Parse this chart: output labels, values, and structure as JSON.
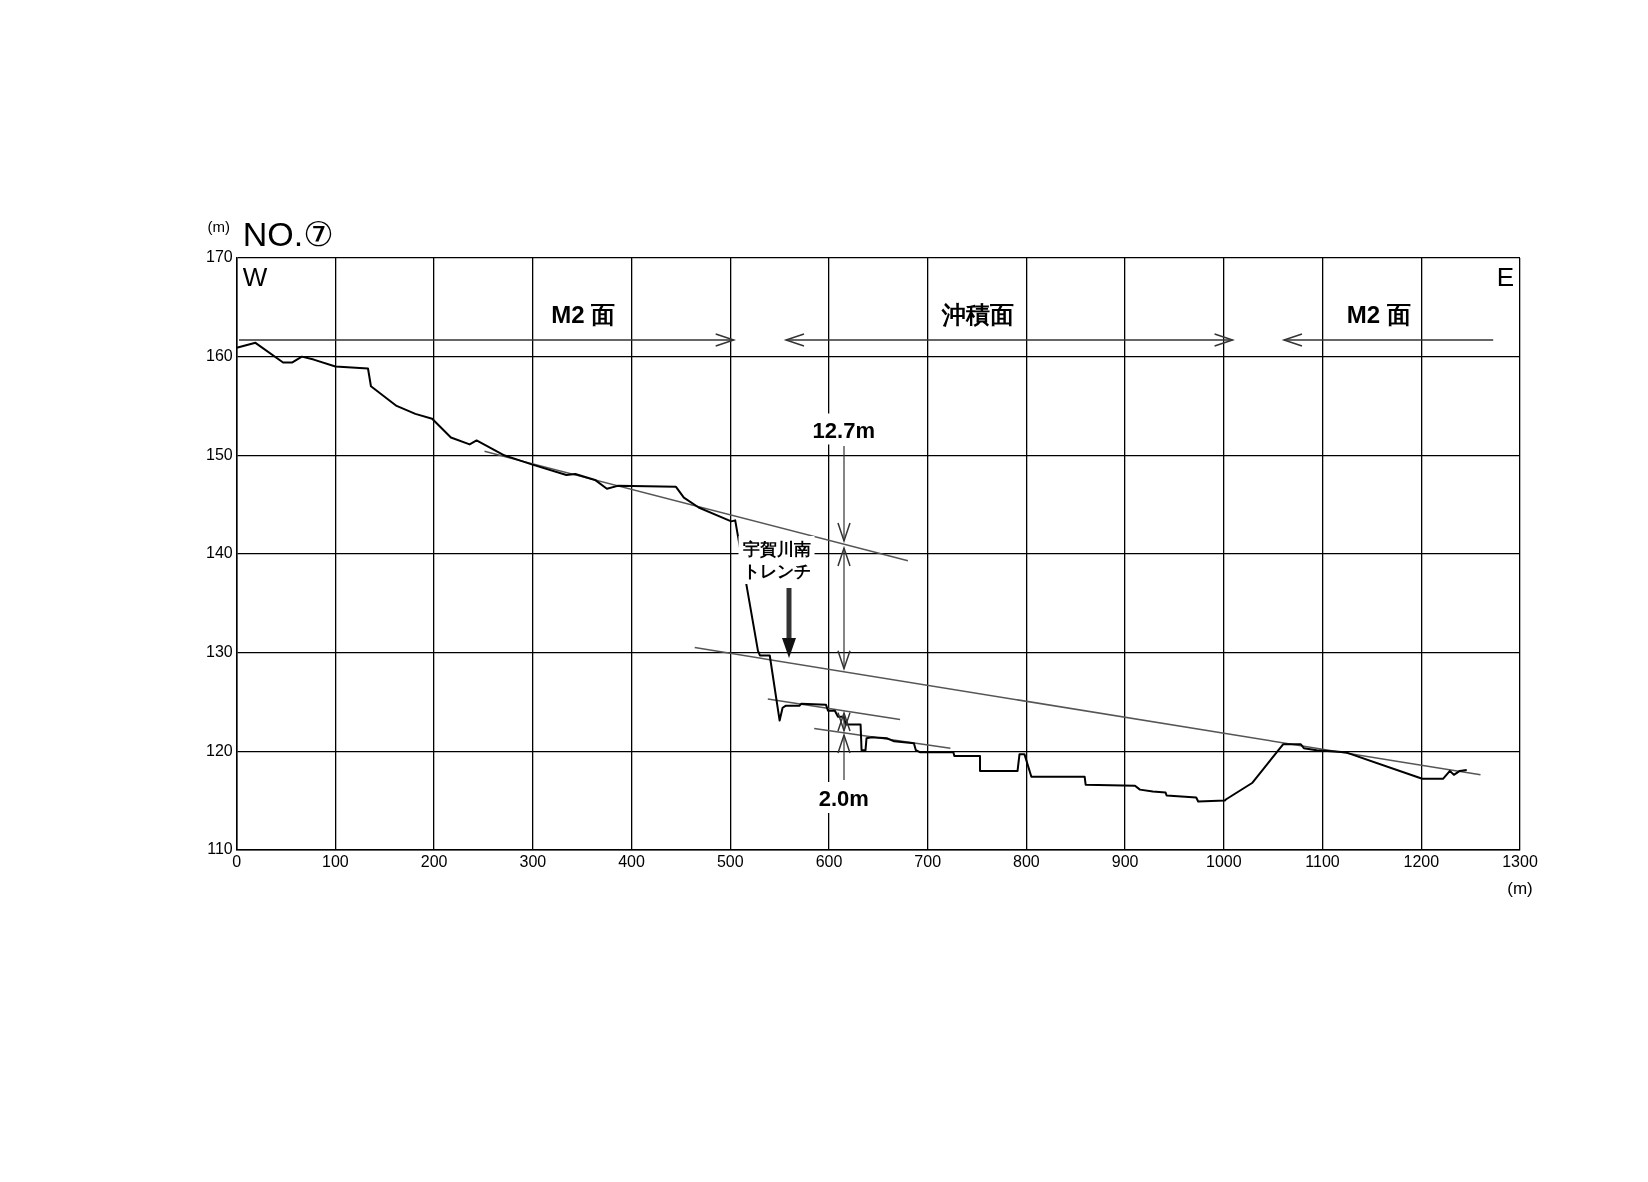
{
  "chart_data": {
    "type": "line",
    "title": "NO.⑦",
    "ylabel": "(m)",
    "xlabel": "(m)",
    "xlim": [
      0,
      1300
    ],
    "xticks": [
      0,
      100,
      200,
      300,
      400,
      500,
      600,
      700,
      800,
      900,
      1000,
      1100,
      1200,
      1300
    ],
    "ylim": [
      110,
      170
    ],
    "yticks": [
      110,
      120,
      130,
      140,
      150,
      160,
      170
    ],
    "grid": true,
    "legend": false,
    "marker": "none",
    "line_style": "solid",
    "series": [
      {
        "color": "#000000",
        "x": [
          0,
          19,
          47,
          56,
          66,
          78,
          100,
          133,
          136,
          162,
          181,
          198,
          217,
          236,
          243,
          271,
          298,
          334,
          343,
          363,
          375,
          386,
          445,
          453,
          468,
          501,
          505,
          528,
          530,
          540,
          550,
          553,
          556,
          570,
          572,
          597,
          599,
          606,
          609,
          615,
          617,
          632,
          633,
          637,
          638,
          643,
          659,
          666,
          686,
          688,
          692,
          726,
          727,
          753,
          753,
          791,
          793,
          798,
          805,
          859,
          860,
          910,
          915,
          928,
          941,
          942,
          972,
          974,
          1001,
          1002,
          1029,
          1060,
          1078,
          1081,
          1094,
          1123,
          1201,
          1204,
          1222,
          1229,
          1233,
          1239,
          1246
        ],
        "values": [
          160.9,
          161.4,
          159.4,
          159.4,
          160.0,
          159.7,
          159.0,
          158.8,
          157.0,
          155.0,
          154.2,
          153.7,
          151.8,
          151.1,
          151.5,
          150.0,
          149.1,
          148.0,
          148.1,
          147.5,
          146.6,
          146.9,
          146.8,
          145.7,
          144.7,
          143.3,
          143.4,
          130.2,
          129.7,
          129.7,
          123.1,
          124.4,
          124.6,
          124.6,
          124.8,
          124.7,
          124.1,
          124.1,
          123.5,
          123.5,
          122.7,
          122.7,
          120.1,
          120.1,
          121.3,
          121.4,
          121.3,
          121.0,
          120.8,
          120.1,
          119.9,
          119.9,
          119.5,
          119.5,
          118.0,
          118.0,
          119.7,
          119.7,
          117.4,
          117.4,
          116.6,
          116.5,
          116.1,
          115.9,
          115.8,
          115.5,
          115.3,
          114.9,
          115.0,
          115.1,
          116.8,
          120.7,
          120.7,
          120.3,
          120.1,
          119.9,
          117.2,
          117.2,
          117.2,
          118.0,
          117.6,
          118.0,
          118.1
        ]
      },
      {
        "type": "line",
        "color": "#555555",
        "x": [
          251,
          680
        ],
        "values": [
          150.4,
          139.3
        ]
      },
      {
        "type": "line",
        "color": "#555555",
        "x": [
          464,
          1260
        ],
        "values": [
          130.5,
          117.6
        ]
      },
      {
        "type": "line",
        "color": "#555555",
        "x": [
          538,
          672
        ],
        "values": [
          125.3,
          123.2
        ]
      },
      {
        "type": "line",
        "color": "#555555",
        "x": [
          585,
          723
        ],
        "values": [
          122.3,
          120.3
        ]
      }
    ],
    "annotations": [
      "W",
      "E",
      "M2 面",
      "沖積面",
      "M2 面",
      "宇賀川南トレンチ",
      {
        "text": "12.7m",
        "x": 615,
        "y": 141.0
      },
      {
        "text": "2.0m",
        "x": 615,
        "y": 121.9
      }
    ]
  }
}
